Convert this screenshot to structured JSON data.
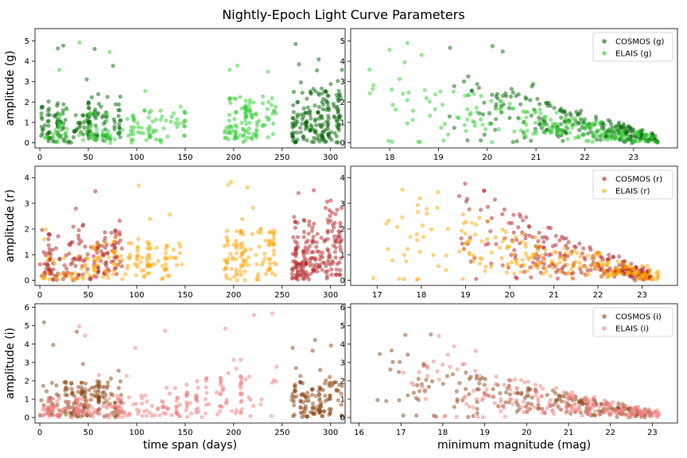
{
  "chart_data": {
    "type": "scatter",
    "title": "Nightly-Epoch Light Curve Parameters",
    "panels": [
      {
        "id": "g-span",
        "row": 0,
        "col": 0,
        "ylabel": "amplitude (g)",
        "xlabel": "",
        "xlim": [
          -5,
          315
        ],
        "ylim": [
          -0.25,
          5.6
        ],
        "xticks": [
          "0",
          "50",
          "100",
          "150",
          "200",
          "250",
          "300"
        ],
        "yticks": [
          "0",
          "1",
          "2",
          "3",
          "4",
          "5"
        ],
        "legend": null,
        "series": [
          {
            "name": "COSMOS (g)",
            "color": "#006400",
            "kind": "span",
            "clusters": [
              [
                0,
                85,
                0.85,
                1.3,
                110
              ],
              [
                260,
                312,
                1.1,
                1.7,
                130
              ]
            ]
          },
          {
            "name": "ELAIS (g)",
            "color": "#32cd32",
            "kind": "span",
            "clusters": [
              [
                0,
                150,
                0.6,
                1.0,
                90
              ],
              [
                190,
                245,
                0.9,
                1.4,
                60
              ]
            ]
          }
        ]
      },
      {
        "id": "g-mag",
        "row": 0,
        "col": 1,
        "ylabel": "",
        "xlabel": "",
        "xlim": [
          17.2,
          23.9
        ],
        "ylim": [
          -0.25,
          5.6
        ],
        "xticks": [
          "18",
          "19",
          "20",
          "21",
          "22",
          "23"
        ],
        "yticks": [
          "0",
          "1",
          "2",
          "3",
          "4",
          "5"
        ],
        "legend": "top-right",
        "series": [
          {
            "name": "COSMOS (g)",
            "color": "#006400",
            "kind": "mag",
            "range": [
              19.0,
              23.5
            ],
            "n": 240
          },
          {
            "name": "ELAIS (g)",
            "color": "#32cd32",
            "kind": "mag",
            "range": [
              17.4,
              23.5
            ],
            "n": 200
          }
        ]
      },
      {
        "id": "r-span",
        "row": 1,
        "col": 0,
        "ylabel": "amplitude (r)",
        "xlabel": "",
        "xlim": [
          -5,
          315
        ],
        "ylim": [
          -0.2,
          4.45
        ],
        "xticks": [
          "0",
          "50",
          "100",
          "150",
          "200",
          "250",
          "300"
        ],
        "yticks": [
          "0",
          "1",
          "2",
          "3",
          "4"
        ],
        "legend": null,
        "series": [
          {
            "name": "COSMOS (r)",
            "color": "#b22222",
            "kind": "span",
            "clusters": [
              [
                0,
                85,
                0.8,
                1.1,
                110
              ],
              [
                260,
                312,
                1.0,
                1.5,
                140
              ]
            ]
          },
          {
            "name": "ELAIS (r)",
            "color": "#ffa500",
            "kind": "span",
            "clusters": [
              [
                0,
                150,
                0.6,
                1.0,
                100
              ],
              [
                190,
                245,
                0.8,
                1.2,
                60
              ]
            ]
          }
        ]
      },
      {
        "id": "r-mag",
        "row": 1,
        "col": 1,
        "ylabel": "",
        "xlabel": "",
        "xlim": [
          16.4,
          23.8
        ],
        "ylim": [
          -0.2,
          4.45
        ],
        "xticks": [
          "17",
          "18",
          "19",
          "20",
          "21",
          "22",
          "23"
        ],
        "yticks": [
          "0",
          "1",
          "2",
          "3",
          "4"
        ],
        "legend": "top-right",
        "series": [
          {
            "name": "COSMOS (r)",
            "color": "#b22222",
            "kind": "mag",
            "range": [
              18.7,
              23.2
            ],
            "n": 240
          },
          {
            "name": "ELAIS (r)",
            "color": "#ffa500",
            "kind": "mag",
            "range": [
              16.8,
              23.4
            ],
            "n": 220
          }
        ]
      },
      {
        "id": "i-span",
        "row": 2,
        "col": 0,
        "ylabel": "amplitude (i)",
        "xlabel": "time span (days)",
        "xlim": [
          -5,
          315
        ],
        "ylim": [
          -0.3,
          6.2
        ],
        "xticks": [
          "0",
          "50",
          "100",
          "150",
          "200",
          "250",
          "300"
        ],
        "yticks": [
          "0",
          "1",
          "2",
          "3",
          "4",
          "5",
          "6"
        ],
        "legend": null,
        "series": [
          {
            "name": "COSMOS (i)",
            "color": "#8b4513",
            "kind": "span",
            "clusters": [
              [
                0,
                85,
                0.8,
                1.4,
                120
              ],
              [
                260,
                312,
                0.8,
                1.4,
                70
              ]
            ]
          },
          {
            "name": "ELAIS (i)",
            "color": "#f08080",
            "kind": "span",
            "clusters": [
              [
                0,
                145,
                0.4,
                0.9,
                120
              ],
              [
                150,
                245,
                1.0,
                1.6,
                40
              ]
            ]
          }
        ]
      },
      {
        "id": "i-mag",
        "row": 2,
        "col": 1,
        "ylabel": "",
        "xlabel": "minimum magnitude (mag)",
        "xlim": [
          15.8,
          23.6
        ],
        "ylim": [
          -0.3,
          6.2
        ],
        "xticks": [
          "16",
          "17",
          "18",
          "19",
          "20",
          "21",
          "22",
          "23"
        ],
        "yticks": [
          "0",
          "1",
          "2",
          "3",
          "4",
          "5",
          "6"
        ],
        "legend": "top-right",
        "series": [
          {
            "name": "COSMOS (i)",
            "color": "#8b4513",
            "kind": "mag",
            "range": [
              16.1,
              23.0
            ],
            "n": 200
          },
          {
            "name": "ELAIS (i)",
            "color": "#f08080",
            "kind": "mag",
            "range": [
              16.8,
              23.2
            ],
            "n": 220
          }
        ]
      }
    ]
  }
}
